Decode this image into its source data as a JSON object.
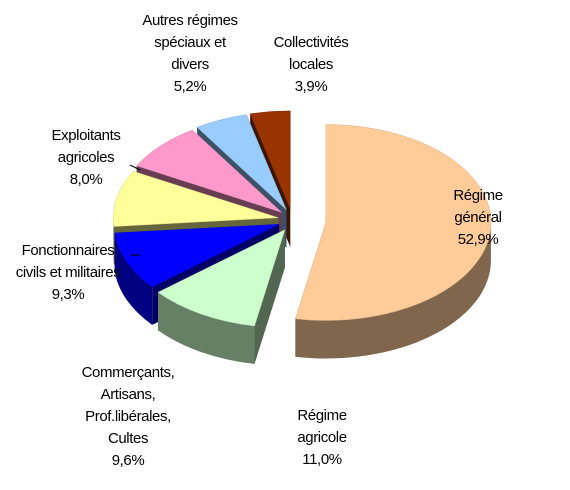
{
  "chart_data": {
    "type": "pie",
    "categories": [
      "Régime général",
      "Régime agricole",
      "Commerçants, Artisans, Prof.libérales, Cultes",
      "Fonctionnaires civils et militaires",
      "Exploitants agricoles",
      "Autres régimes spéciaux et divers",
      "Collectivités locales"
    ],
    "values": [
      52.9,
      11.0,
      9.6,
      9.3,
      8.0,
      5.2,
      3.9
    ],
    "value_labels": [
      "52,9%",
      "11,0%",
      "9,6%",
      "9,3%",
      "8,0%",
      "5,2%",
      "3,9%"
    ],
    "colors": [
      "#FFCC99",
      "#CCFFCC",
      "#0000FF",
      "#FFFF99",
      "#FF99CC",
      "#99CCFF",
      "#993300"
    ]
  }
}
